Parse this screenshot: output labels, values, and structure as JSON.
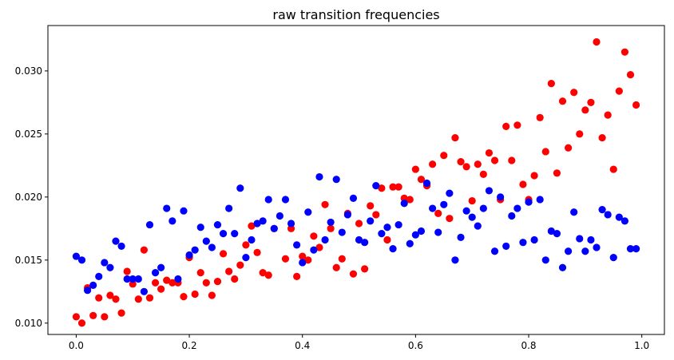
{
  "chart_data": {
    "type": "scatter",
    "title": "raw transition frequencies",
    "xlabel": "",
    "ylabel": "",
    "xlim": [
      -0.05,
      1.04
    ],
    "ylim": [
      0.0091,
      0.0336
    ],
    "grid": false,
    "xticks": [
      0.0,
      0.2,
      0.4,
      0.6,
      0.8,
      1.0
    ],
    "xtick_labels": [
      "0.0",
      "0.2",
      "0.4",
      "0.6",
      "0.8",
      "1.0"
    ],
    "yticks": [
      0.01,
      0.015,
      0.02,
      0.025,
      0.03
    ],
    "ytick_labels": [
      "0.010",
      "0.015",
      "0.020",
      "0.025",
      "0.030"
    ],
    "series": [
      {
        "color": "#ff0000",
        "points": [
          [
            0.0,
            0.0105
          ],
          [
            0.01,
            0.01
          ],
          [
            0.02,
            0.0128
          ],
          [
            0.03,
            0.0106
          ],
          [
            0.04,
            0.012
          ],
          [
            0.05,
            0.0105
          ],
          [
            0.06,
            0.0122
          ],
          [
            0.07,
            0.0119
          ],
          [
            0.08,
            0.0108
          ],
          [
            0.09,
            0.0141
          ],
          [
            0.1,
            0.0131
          ],
          [
            0.11,
            0.0119
          ],
          [
            0.12,
            0.0158
          ],
          [
            0.13,
            0.012
          ],
          [
            0.14,
            0.0132
          ],
          [
            0.15,
            0.0127
          ],
          [
            0.16,
            0.0134
          ],
          [
            0.17,
            0.0132
          ],
          [
            0.18,
            0.0132
          ],
          [
            0.19,
            0.0121
          ],
          [
            0.2,
            0.0152
          ],
          [
            0.21,
            0.0123
          ],
          [
            0.22,
            0.014
          ],
          [
            0.23,
            0.0132
          ],
          [
            0.24,
            0.0122
          ],
          [
            0.25,
            0.0133
          ],
          [
            0.26,
            0.0155
          ],
          [
            0.27,
            0.0141
          ],
          [
            0.28,
            0.0135
          ],
          [
            0.29,
            0.0146
          ],
          [
            0.3,
            0.0162
          ],
          [
            0.31,
            0.0177
          ],
          [
            0.32,
            0.0156
          ],
          [
            0.33,
            0.014
          ],
          [
            0.34,
            0.0138
          ],
          [
            0.35,
            0.0175
          ],
          [
            0.37,
            0.0151
          ],
          [
            0.38,
            0.0175
          ],
          [
            0.39,
            0.0137
          ],
          [
            0.4,
            0.0153
          ],
          [
            0.41,
            0.015
          ],
          [
            0.42,
            0.0169
          ],
          [
            0.43,
            0.016
          ],
          [
            0.44,
            0.0194
          ],
          [
            0.45,
            0.0175
          ],
          [
            0.46,
            0.0144
          ],
          [
            0.47,
            0.0151
          ],
          [
            0.48,
            0.0187
          ],
          [
            0.49,
            0.0139
          ],
          [
            0.5,
            0.0179
          ],
          [
            0.51,
            0.0143
          ],
          [
            0.52,
            0.0193
          ],
          [
            0.53,
            0.0186
          ],
          [
            0.54,
            0.0207
          ],
          [
            0.55,
            0.0166
          ],
          [
            0.56,
            0.0208
          ],
          [
            0.57,
            0.0208
          ],
          [
            0.58,
            0.0199
          ],
          [
            0.59,
            0.0198
          ],
          [
            0.6,
            0.0222
          ],
          [
            0.61,
            0.0214
          ],
          [
            0.62,
            0.0209
          ],
          [
            0.63,
            0.0226
          ],
          [
            0.64,
            0.0187
          ],
          [
            0.65,
            0.0233
          ],
          [
            0.66,
            0.0183
          ],
          [
            0.67,
            0.0247
          ],
          [
            0.68,
            0.0228
          ],
          [
            0.69,
            0.0224
          ],
          [
            0.7,
            0.0197
          ],
          [
            0.71,
            0.0226
          ],
          [
            0.72,
            0.0218
          ],
          [
            0.73,
            0.0235
          ],
          [
            0.74,
            0.0229
          ],
          [
            0.75,
            0.0198
          ],
          [
            0.76,
            0.0256
          ],
          [
            0.77,
            0.0229
          ],
          [
            0.78,
            0.0257
          ],
          [
            0.79,
            0.021
          ],
          [
            0.8,
            0.0198
          ],
          [
            0.81,
            0.0217
          ],
          [
            0.82,
            0.0263
          ],
          [
            0.83,
            0.0236
          ],
          [
            0.84,
            0.029
          ],
          [
            0.85,
            0.0219
          ],
          [
            0.86,
            0.0276
          ],
          [
            0.87,
            0.0239
          ],
          [
            0.88,
            0.0283
          ],
          [
            0.89,
            0.025
          ],
          [
            0.9,
            0.0269
          ],
          [
            0.91,
            0.0275
          ],
          [
            0.92,
            0.0323
          ],
          [
            0.93,
            0.0247
          ],
          [
            0.94,
            0.0265
          ],
          [
            0.95,
            0.0222
          ],
          [
            0.96,
            0.0284
          ],
          [
            0.97,
            0.0315
          ],
          [
            0.98,
            0.0297
          ],
          [
            0.99,
            0.0273
          ]
        ]
      },
      {
        "color": "#0000ff",
        "points": [
          [
            0.0,
            0.0153
          ],
          [
            0.01,
            0.015
          ],
          [
            0.02,
            0.0126
          ],
          [
            0.03,
            0.013
          ],
          [
            0.04,
            0.0137
          ],
          [
            0.05,
            0.0148
          ],
          [
            0.06,
            0.0144
          ],
          [
            0.07,
            0.0165
          ],
          [
            0.08,
            0.0161
          ],
          [
            0.09,
            0.0135
          ],
          [
            0.1,
            0.0135
          ],
          [
            0.11,
            0.0135
          ],
          [
            0.12,
            0.0125
          ],
          [
            0.13,
            0.0178
          ],
          [
            0.14,
            0.014
          ],
          [
            0.15,
            0.0144
          ],
          [
            0.16,
            0.0191
          ],
          [
            0.17,
            0.0181
          ],
          [
            0.18,
            0.0135
          ],
          [
            0.19,
            0.0189
          ],
          [
            0.2,
            0.0154
          ],
          [
            0.21,
            0.0158
          ],
          [
            0.22,
            0.0176
          ],
          [
            0.23,
            0.0165
          ],
          [
            0.24,
            0.016
          ],
          [
            0.25,
            0.0178
          ],
          [
            0.26,
            0.0171
          ],
          [
            0.27,
            0.0191
          ],
          [
            0.28,
            0.0171
          ],
          [
            0.29,
            0.0207
          ],
          [
            0.3,
            0.0152
          ],
          [
            0.31,
            0.0166
          ],
          [
            0.32,
            0.0179
          ],
          [
            0.33,
            0.0181
          ],
          [
            0.34,
            0.0198
          ],
          [
            0.35,
            0.0175
          ],
          [
            0.36,
            0.0185
          ],
          [
            0.37,
            0.0198
          ],
          [
            0.38,
            0.0179
          ],
          [
            0.39,
            0.0162
          ],
          [
            0.4,
            0.0148
          ],
          [
            0.41,
            0.0188
          ],
          [
            0.42,
            0.0158
          ],
          [
            0.43,
            0.0216
          ],
          [
            0.44,
            0.0166
          ],
          [
            0.45,
            0.018
          ],
          [
            0.46,
            0.0214
          ],
          [
            0.47,
            0.0172
          ],
          [
            0.48,
            0.0186
          ],
          [
            0.49,
            0.0199
          ],
          [
            0.5,
            0.0166
          ],
          [
            0.51,
            0.0164
          ],
          [
            0.52,
            0.0181
          ],
          [
            0.53,
            0.0209
          ],
          [
            0.54,
            0.0171
          ],
          [
            0.55,
            0.0176
          ],
          [
            0.56,
            0.0159
          ],
          [
            0.57,
            0.0178
          ],
          [
            0.58,
            0.0195
          ],
          [
            0.59,
            0.0163
          ],
          [
            0.6,
            0.017
          ],
          [
            0.61,
            0.0173
          ],
          [
            0.62,
            0.0211
          ],
          [
            0.63,
            0.0191
          ],
          [
            0.64,
            0.0172
          ],
          [
            0.65,
            0.0194
          ],
          [
            0.66,
            0.0203
          ],
          [
            0.67,
            0.015
          ],
          [
            0.68,
            0.0168
          ],
          [
            0.69,
            0.0189
          ],
          [
            0.7,
            0.0184
          ],
          [
            0.71,
            0.0177
          ],
          [
            0.72,
            0.0191
          ],
          [
            0.73,
            0.0205
          ],
          [
            0.74,
            0.0157
          ],
          [
            0.75,
            0.02
          ],
          [
            0.76,
            0.0161
          ],
          [
            0.77,
            0.0185
          ],
          [
            0.78,
            0.0191
          ],
          [
            0.79,
            0.0164
          ],
          [
            0.8,
            0.0196
          ],
          [
            0.81,
            0.0166
          ],
          [
            0.82,
            0.0198
          ],
          [
            0.83,
            0.015
          ],
          [
            0.84,
            0.0173
          ],
          [
            0.85,
            0.0171
          ],
          [
            0.86,
            0.0144
          ],
          [
            0.87,
            0.0157
          ],
          [
            0.88,
            0.0188
          ],
          [
            0.89,
            0.0167
          ],
          [
            0.9,
            0.0157
          ],
          [
            0.91,
            0.0166
          ],
          [
            0.92,
            0.016
          ],
          [
            0.93,
            0.019
          ],
          [
            0.94,
            0.0186
          ],
          [
            0.95,
            0.0152
          ],
          [
            0.96,
            0.0184
          ],
          [
            0.97,
            0.0181
          ],
          [
            0.98,
            0.0159
          ],
          [
            0.99,
            0.0159
          ]
        ]
      }
    ]
  }
}
